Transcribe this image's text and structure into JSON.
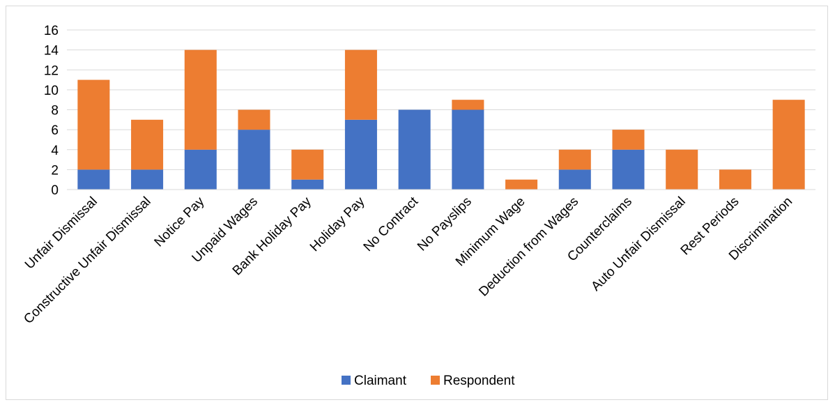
{
  "chart_data": {
    "type": "bar",
    "stacked": true,
    "categories": [
      "Unfair Dismissal",
      "Constructive Unfair Dismissal",
      "Notice Pay",
      "Unpaid Wages",
      "Bank Holiday Pay",
      "Holiday Pay",
      "No Contract",
      "No Payslips",
      "Minimum Wage",
      "Deduction from Wages",
      "Counterclaims",
      "Auto Unfair Dismissal",
      "Rest Periods",
      "Discrimination"
    ],
    "series": [
      {
        "name": "Claimant",
        "color": "#4472c4",
        "values": [
          2,
          2,
          4,
          6,
          1,
          7,
          8,
          8,
          0,
          2,
          4,
          0,
          0,
          0
        ]
      },
      {
        "name": "Respondent",
        "color": "#ed7d31",
        "values": [
          9,
          5,
          10,
          2,
          3,
          7,
          0,
          1,
          1,
          2,
          2,
          4,
          2,
          9
        ]
      }
    ],
    "ylim": [
      0,
      16
    ],
    "yticks": [
      0,
      2,
      4,
      6,
      8,
      10,
      12,
      14,
      16
    ],
    "grid": true,
    "legend_position": "bottom",
    "title": "",
    "xlabel": "",
    "ylabel": ""
  }
}
